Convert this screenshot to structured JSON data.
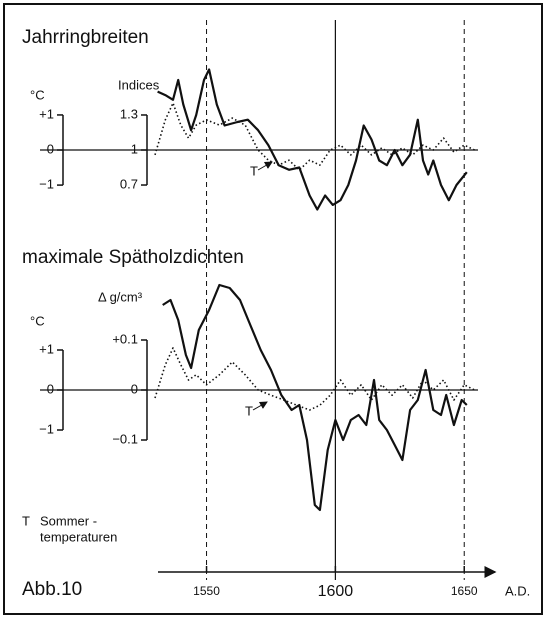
{
  "figure_label": "Abb.10",
  "note": [
    "T",
    "Sommer -",
    "temperaturen"
  ],
  "chart_data": [
    {
      "type": "line",
      "title": "Jahrringbreiten",
      "ylabel": "Indices",
      "y2label": "°C",
      "annotation": "T",
      "xlim": [
        1530,
        1660
      ],
      "ylim": [
        0.45,
        1.7
      ],
      "yticks": [
        1.3,
        1,
        0.7
      ],
      "y2lim": [
        -1.83,
        2.33
      ],
      "y2ticks": [
        {
          "value": 1,
          "label": "+1"
        },
        0,
        {
          "value": -1,
          "label": "−1"
        }
      ],
      "series": [
        {
          "color": "#111111",
          "style": "solid",
          "x": [
            1531,
            1534,
            1537,
            1539,
            1541,
            1544,
            1546,
            1549,
            1551,
            1554,
            1557,
            1562,
            1566,
            1570,
            1574,
            1578,
            1582,
            1586,
            1590,
            1593,
            1596,
            1599,
            1602,
            1605,
            1608,
            1611,
            1614,
            1617,
            1620,
            1623,
            1626,
            1629,
            1632,
            1634,
            1636,
            1638,
            1641,
            1644,
            1647,
            1651
          ],
          "values": [
            1.5,
            1.47,
            1.43,
            1.6,
            1.39,
            1.17,
            1.3,
            1.6,
            1.69,
            1.39,
            1.21,
            1.24,
            1.26,
            1.17,
            1.04,
            0.87,
            0.83,
            0.85,
            0.61,
            0.49,
            0.61,
            0.53,
            0.57,
            0.7,
            0.91,
            1.21,
            1.09,
            0.91,
            0.87,
            1.0,
            0.87,
            0.96,
            1.26,
            0.91,
            0.79,
            0.91,
            0.7,
            0.57,
            0.7,
            0.81
          ]
        },
        {
          "color": "#111111",
          "style": "dotted",
          "axis": "y2",
          "x": [
            1530,
            1534,
            1537,
            1540,
            1543,
            1546,
            1550,
            1555,
            1560,
            1565,
            1570,
            1574,
            1578,
            1582,
            1586,
            1590,
            1594,
            1598,
            1602,
            1606,
            1610,
            1614,
            1618,
            1622,
            1626,
            1630,
            1634,
            1638,
            1642,
            1646,
            1650,
            1654
          ],
          "values": [
            -0.14,
            0.86,
            1.34,
            0.71,
            0.34,
            0.71,
            0.86,
            0.71,
            0.91,
            0.71,
            0,
            -0.29,
            -0.43,
            -0.29,
            -0.57,
            -0.29,
            -0.43,
            0,
            0.14,
            -0.14,
            0.14,
            -0.14,
            0.06,
            -0.14,
            0.06,
            -0.14,
            0.14,
            0,
            0.34,
            -0.06,
            0.14,
            0
          ]
        }
      ]
    },
    {
      "type": "line",
      "title": "maximale Spätholzdichten",
      "ylabel": "Δ g/cm³",
      "y2label": "°C",
      "annotation": "T",
      "xlim": [
        1530,
        1660
      ],
      "xticks": [
        1550,
        1600,
        1650
      ],
      "xtick_line_styles": [
        "dashed",
        "solid",
        "dashed"
      ],
      "xlabel": "A.D.",
      "ylim": [
        -0.26,
        0.22
      ],
      "yticks": [
        {
          "value": 0.1,
          "label": "+0.1"
        },
        0,
        {
          "value": -0.1,
          "label": "−0.1"
        }
      ],
      "y2lim": [
        -3.25,
        2.75
      ],
      "y2ticks": [
        {
          "value": 1,
          "label": "+1"
        },
        0,
        {
          "value": -1,
          "label": "−1"
        }
      ],
      "series": [
        {
          "color": "#111111",
          "style": "solid",
          "x": [
            1533,
            1536,
            1539,
            1542,
            1544,
            1547,
            1551,
            1555,
            1559,
            1563,
            1567,
            1571,
            1575,
            1579,
            1583,
            1586,
            1589,
            1592,
            1594,
            1597,
            1600,
            1603,
            1606,
            1609,
            1612,
            1615,
            1617,
            1620,
            1623,
            1626,
            1629,
            1632,
            1635,
            1638,
            1641,
            1643,
            1646,
            1649,
            1651
          ],
          "values": [
            0.17,
            0.18,
            0.14,
            0.07,
            0.044,
            0.12,
            0.16,
            0.21,
            0.204,
            0.18,
            0.13,
            0.08,
            0.04,
            -0.01,
            -0.04,
            -0.03,
            -0.1,
            -0.23,
            -0.24,
            -0.12,
            -0.06,
            -0.1,
            -0.06,
            -0.05,
            -0.07,
            0.02,
            -0.06,
            -0.08,
            -0.11,
            -0.14,
            -0.04,
            -0.02,
            0.04,
            -0.04,
            -0.05,
            -0.01,
            -0.07,
            -0.02,
            -0.03
          ]
        },
        {
          "color": "#111111",
          "style": "dotted",
          "axis": "y2",
          "x": [
            1530,
            1534,
            1537,
            1540,
            1543,
            1546,
            1550,
            1555,
            1560,
            1565,
            1570,
            1575,
            1580,
            1585,
            1590,
            1594,
            1598,
            1602,
            1606,
            1610,
            1614,
            1618,
            1622,
            1626,
            1630,
            1634,
            1638,
            1642,
            1646,
            1650,
            1654
          ],
          "values": [
            -0.2,
            0.63,
            1.05,
            0.63,
            0.25,
            0.38,
            0.13,
            0.38,
            0.7,
            0.38,
            0,
            -0.13,
            -0.25,
            -0.38,
            -0.5,
            -0.38,
            -0.13,
            0.25,
            -0.13,
            0.13,
            -0.25,
            0.13,
            -0.13,
            0.13,
            -0.2,
            0.25,
            0,
            0.25,
            -0.25,
            0.13,
            0
          ]
        }
      ]
    }
  ]
}
